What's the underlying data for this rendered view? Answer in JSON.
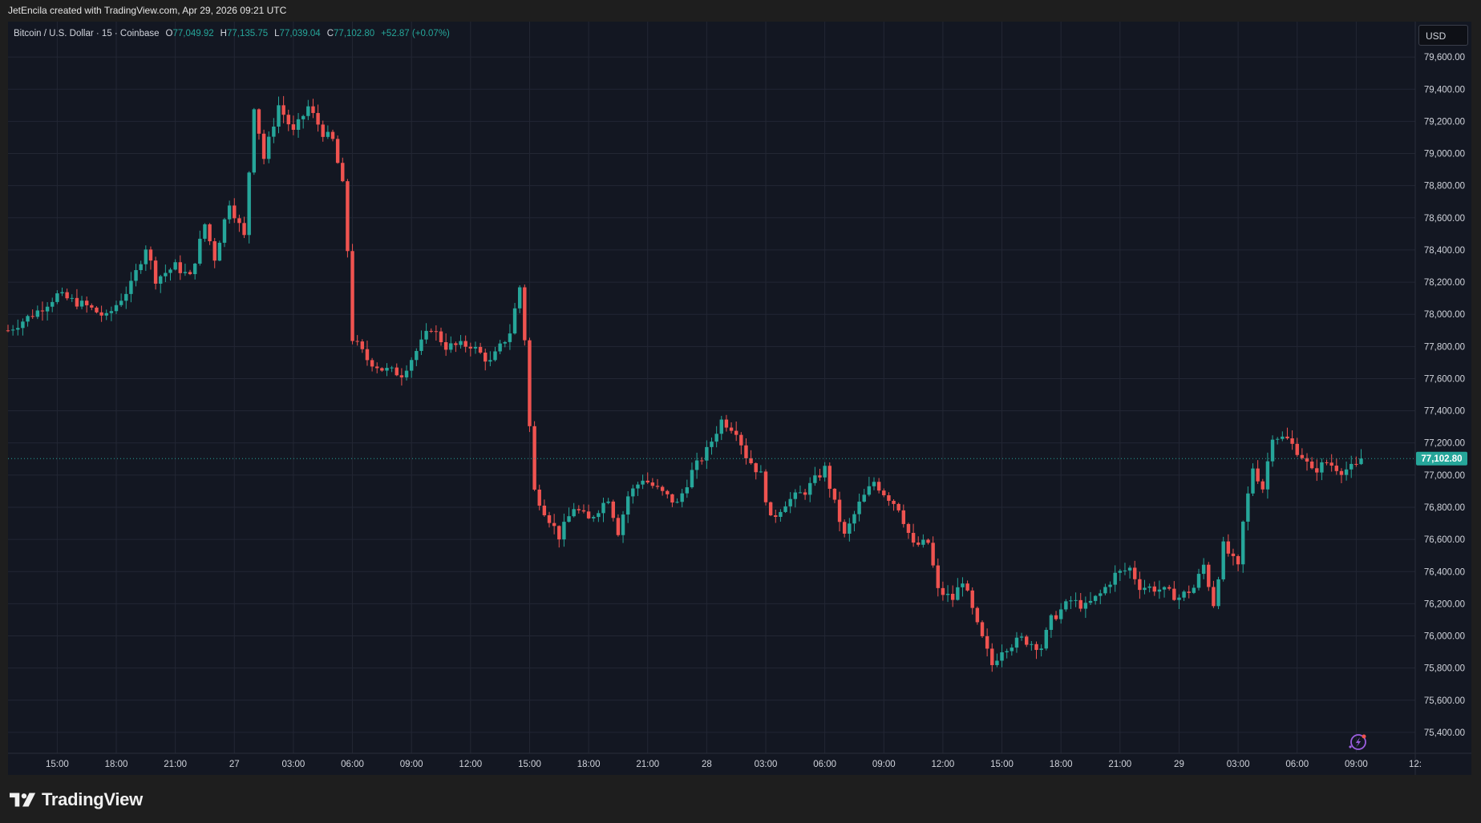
{
  "header": {
    "credit": "JetEncila created with TradingView.com, Apr 29, 2026 09:21 UTC"
  },
  "legend": {
    "symbol": "Bitcoin / U.S. Dollar · 15 · Coinbase",
    "open_label": "O",
    "open": "77,049.92",
    "high_label": "H",
    "high": "77,135.75",
    "low_label": "L",
    "low": "77,039.04",
    "close_label": "C",
    "close": "77,102.80",
    "change": "+52.87 (+0.07%)"
  },
  "currency_button": {
    "label": "USD"
  },
  "brand": {
    "name": "TradingView",
    "logo_icon": "tradingview-logo-icon"
  },
  "colors": {
    "background": "#131722",
    "up": "#26a69a",
    "down": "#ef5350",
    "grid": "#232734",
    "text": "#d1d4dc",
    "price_tag": "#26a69a",
    "bottom_bar": "#1e1e1e"
  },
  "chart_data": {
    "type": "candlestick",
    "timeframe": "15",
    "y_axis": {
      "ticks": [
        75400,
        75600,
        75800,
        76000,
        76200,
        76400,
        76600,
        76800,
        77000,
        77200,
        77400,
        77600,
        77800,
        78000,
        78200,
        78400,
        78600,
        78800,
        79000,
        79200,
        79400,
        79600
      ],
      "tick_labels": [
        "75,400.00",
        "75,600.00",
        "75,800.00",
        "76,000.00",
        "76,200.00",
        "76,400.00",
        "76,600.00",
        "76,800.00",
        "77,000.00",
        "77,200.00",
        "77,400.00",
        "77,600.00",
        "77,800.00",
        "78,000.00",
        "78,200.00",
        "78,400.00",
        "78,600.00",
        "78,800.00",
        "79,000.00",
        "79,200.00",
        "79,400.00",
        "79,600.00"
      ],
      "range": [
        75270,
        79820
      ]
    },
    "x_axis": {
      "ticks": [
        {
          "label": "15:00",
          "t": "2026-04-26 15:00"
        },
        {
          "label": "18:00",
          "t": "2026-04-26 18:00"
        },
        {
          "label": "21:00",
          "t": "2026-04-26 21:00"
        },
        {
          "label": "27",
          "t": "2026-04-27 00:00"
        },
        {
          "label": "03:00",
          "t": "2026-04-27 03:00"
        },
        {
          "label": "06:00",
          "t": "2026-04-27 06:00"
        },
        {
          "label": "09:00",
          "t": "2026-04-27 09:00"
        },
        {
          "label": "12:00",
          "t": "2026-04-27 12:00"
        },
        {
          "label": "15:00",
          "t": "2026-04-27 15:00"
        },
        {
          "label": "18:00",
          "t": "2026-04-27 18:00"
        },
        {
          "label": "21:00",
          "t": "2026-04-27 21:00"
        },
        {
          "label": "28",
          "t": "2026-04-28 00:00"
        },
        {
          "label": "03:00",
          "t": "2026-04-28 03:00"
        },
        {
          "label": "06:00",
          "t": "2026-04-28 06:00"
        },
        {
          "label": "09:00",
          "t": "2026-04-28 09:00"
        },
        {
          "label": "12:00",
          "t": "2026-04-28 12:00"
        },
        {
          "label": "15:00",
          "t": "2026-04-28 15:00"
        },
        {
          "label": "18:00",
          "t": "2026-04-28 18:00"
        },
        {
          "label": "21:00",
          "t": "2026-04-28 21:00"
        },
        {
          "label": "29",
          "t": "2026-04-29 00:00"
        },
        {
          "label": "03:00",
          "t": "2026-04-29 03:00"
        },
        {
          "label": "06:00",
          "t": "2026-04-29 06:00"
        },
        {
          "label": "09:00",
          "t": "2026-04-29 09:00"
        },
        {
          "label": "12:",
          "t": "2026-04-29 12:00"
        }
      ],
      "range": [
        "2026-04-26 12:30",
        "2026-04-29 12:00"
      ]
    },
    "last_price": {
      "value": 77102.8,
      "label": "77,102.80"
    },
    "key_points": [
      [
        "2026-04-26 12:30",
        77900
      ],
      [
        "2026-04-26 14:00",
        78020
      ],
      [
        "2026-04-26 15:00",
        78120
      ],
      [
        "2026-04-26 16:30",
        78050
      ],
      [
        "2026-04-26 17:30",
        77980
      ],
      [
        "2026-04-26 18:00",
        78060
      ],
      [
        "2026-04-26 18:45",
        78180
      ],
      [
        "2026-04-26 19:30",
        78420
      ],
      [
        "2026-04-26 20:00",
        78220
      ],
      [
        "2026-04-26 21:00",
        78300
      ],
      [
        "2026-04-26 21:45",
        78230
      ],
      [
        "2026-04-26 22:30",
        78560
      ],
      [
        "2026-04-26 23:00",
        78350
      ],
      [
        "2026-04-26 23:45",
        78700
      ],
      [
        "2026-04-27 00:30",
        78480
      ],
      [
        "2026-04-27 01:00",
        79300
      ],
      [
        "2026-04-27 01:30",
        78970
      ],
      [
        "2026-04-27 02:15",
        79300
      ],
      [
        "2026-04-27 03:00",
        79130
      ],
      [
        "2026-04-27 03:45",
        79290
      ],
      [
        "2026-04-27 04:30",
        79130
      ],
      [
        "2026-04-27 05:00",
        79080
      ],
      [
        "2026-04-27 05:30",
        78800
      ],
      [
        "2026-04-27 05:45",
        78400
      ],
      [
        "2026-04-27 06:00",
        77850
      ],
      [
        "2026-04-27 06:45",
        77720
      ],
      [
        "2026-04-27 07:30",
        77660
      ],
      [
        "2026-04-27 08:30",
        77630
      ],
      [
        "2026-04-27 09:30",
        77820
      ],
      [
        "2026-04-27 10:00",
        77920
      ],
      [
        "2026-04-27 10:45",
        77800
      ],
      [
        "2026-04-27 12:00",
        77810
      ],
      [
        "2026-04-27 13:00",
        77700
      ],
      [
        "2026-04-27 14:00",
        77890
      ],
      [
        "2026-04-27 14:30",
        78170
      ],
      [
        "2026-04-27 14:45",
        77850
      ],
      [
        "2026-04-27 15:00",
        77300
      ],
      [
        "2026-04-27 15:15",
        76900
      ],
      [
        "2026-04-27 15:45",
        76780
      ],
      [
        "2026-04-27 16:30",
        76620
      ],
      [
        "2026-04-27 17:15",
        76800
      ],
      [
        "2026-04-27 18:00",
        76720
      ],
      [
        "2026-04-27 19:00",
        76860
      ],
      [
        "2026-04-27 19:30",
        76650
      ],
      [
        "2026-04-27 20:00",
        76870
      ],
      [
        "2026-04-27 20:45",
        76980
      ],
      [
        "2026-04-27 21:30",
        76910
      ],
      [
        "2026-04-27 22:30",
        76820
      ],
      [
        "2026-04-27 23:15",
        77020
      ],
      [
        "2026-04-28 00:00",
        77150
      ],
      [
        "2026-04-28 00:45",
        77340
      ],
      [
        "2026-04-28 01:30",
        77280
      ],
      [
        "2026-04-28 02:00",
        77120
      ],
      [
        "2026-04-28 02:45",
        77000
      ],
      [
        "2026-04-28 03:15",
        76720
      ],
      [
        "2026-04-28 04:00",
        76830
      ],
      [
        "2026-04-28 05:00",
        76900
      ],
      [
        "2026-04-28 06:00",
        77040
      ],
      [
        "2026-04-28 06:30",
        76820
      ],
      [
        "2026-04-28 07:00",
        76620
      ],
      [
        "2026-04-28 07:45",
        76820
      ],
      [
        "2026-04-28 08:30",
        76960
      ],
      [
        "2026-04-28 09:00",
        76890
      ],
      [
        "2026-04-28 09:45",
        76800
      ],
      [
        "2026-04-28 10:30",
        76560
      ],
      [
        "2026-04-28 11:15",
        76580
      ],
      [
        "2026-04-28 11:45",
        76280
      ],
      [
        "2026-04-28 12:30",
        76230
      ],
      [
        "2026-04-28 13:00",
        76350
      ],
      [
        "2026-04-28 13:45",
        76060
      ],
      [
        "2026-04-28 14:30",
        75820
      ],
      [
        "2026-04-28 15:00",
        75920
      ],
      [
        "2026-04-28 16:00",
        75980
      ],
      [
        "2026-04-28 17:00",
        75930
      ],
      [
        "2026-04-28 17:30",
        76100
      ],
      [
        "2026-04-28 18:30",
        76220
      ],
      [
        "2026-04-28 19:15",
        76180
      ],
      [
        "2026-04-28 20:00",
        76260
      ],
      [
        "2026-04-28 20:45",
        76380
      ],
      [
        "2026-04-28 21:30",
        76420
      ],
      [
        "2026-04-28 22:00",
        76310
      ],
      [
        "2026-04-28 23:00",
        76290
      ],
      [
        "2026-04-29 00:00",
        76240
      ],
      [
        "2026-04-29 00:45",
        76300
      ],
      [
        "2026-04-29 01:15",
        76440
      ],
      [
        "2026-04-29 01:45",
        76200
      ],
      [
        "2026-04-29 02:15",
        76560
      ],
      [
        "2026-04-29 03:00",
        76420
      ],
      [
        "2026-04-29 03:15",
        76700
      ],
      [
        "2026-04-29 03:45",
        77050
      ],
      [
        "2026-04-29 04:15",
        76920
      ],
      [
        "2026-04-29 04:45",
        77250
      ],
      [
        "2026-04-29 05:30",
        77220
      ],
      [
        "2026-04-29 06:15",
        77120
      ],
      [
        "2026-04-29 06:45",
        77020
      ],
      [
        "2026-04-29 07:30",
        77080
      ],
      [
        "2026-04-29 08:15",
        77030
      ],
      [
        "2026-04-29 09:00",
        77049.92
      ],
      [
        "2026-04-29 09:15",
        77102.8
      ]
    ]
  }
}
